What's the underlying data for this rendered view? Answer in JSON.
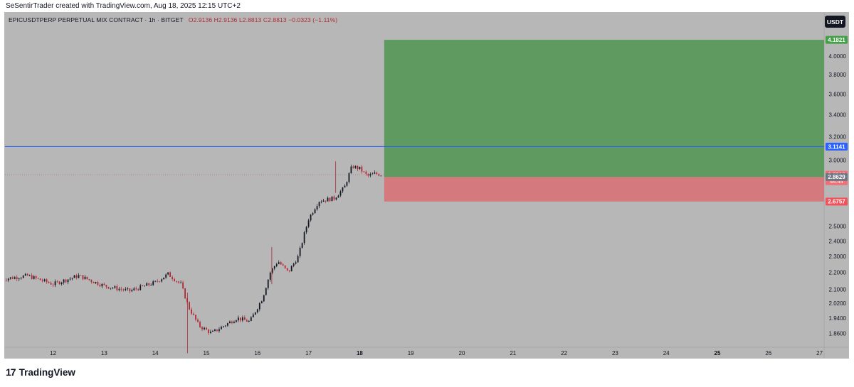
{
  "header": {
    "caption": "SeSentirTrader created with TradingView.com, Aug 18, 2025 12:15 UTC+2"
  },
  "legend": {
    "symbol": "EPICUSDTPERP PERPETUAL MIX CONTRACT · 1h · BITGET",
    "open": "O2.9136",
    "high": "H2.9136",
    "low": "L2.8813",
    "close": "C2.8813",
    "change": "−0.0323 (−1.11%)"
  },
  "currency": "USDT",
  "footer": {
    "logo_mark": "17",
    "logo_text": "TradingView"
  },
  "colors": {
    "background": "#b7b7b7",
    "up": "#131722",
    "down": "#b22833",
    "target_zone": "#5f9a61",
    "stop_zone": "#d47a7e",
    "level_line": "#2962ff",
    "target_label": "#43a047",
    "stop_label": "#f0525a",
    "price_label": "#f56c72",
    "current_label": "#6f7582"
  },
  "chart_data": {
    "type": "candlestick",
    "timeframe": "1h",
    "x_tick_labels": [
      "12",
      "13",
      "14",
      "15",
      "16",
      "17",
      "18",
      "19",
      "20",
      "21",
      "22",
      "23",
      "24",
      "25",
      "26",
      "27"
    ],
    "y_tick_labels": [
      "1.8600",
      "1.9400",
      "2.0200",
      "2.1000",
      "2.2000",
      "2.3000",
      "2.4000",
      "2.5000",
      "3.0000",
      "3.2000",
      "3.4000",
      "3.6000",
      "3.8000",
      "4.0000"
    ],
    "y_axis_scale": "log",
    "ylim": [
      1.8,
      4.35
    ],
    "keypoints": [
      {
        "day": 11.0,
        "price": 2.16
      },
      {
        "day": 11.5,
        "price": 2.18
      },
      {
        "day": 12.0,
        "price": 2.13
      },
      {
        "day": 12.5,
        "price": 2.18
      },
      {
        "day": 13.0,
        "price": 2.12
      },
      {
        "day": 13.5,
        "price": 2.09
      },
      {
        "day": 14.0,
        "price": 2.14
      },
      {
        "day": 14.25,
        "price": 2.19
      },
      {
        "day": 14.5,
        "price": 2.13
      },
      {
        "day": 14.65,
        "price": 2.0
      },
      {
        "day": 14.85,
        "price": 1.9
      },
      {
        "day": 15.1,
        "price": 1.86
      },
      {
        "day": 15.6,
        "price": 1.94
      },
      {
        "day": 15.85,
        "price": 1.92
      },
      {
        "day": 16.1,
        "price": 2.05
      },
      {
        "day": 16.25,
        "price": 2.2
      },
      {
        "day": 16.4,
        "price": 2.27
      },
      {
        "day": 16.6,
        "price": 2.2
      },
      {
        "day": 16.8,
        "price": 2.3
      },
      {
        "day": 17.0,
        "price": 2.55
      },
      {
        "day": 17.2,
        "price": 2.68
      },
      {
        "day": 17.5,
        "price": 2.7
      },
      {
        "day": 17.7,
        "price": 2.78
      },
      {
        "day": 17.85,
        "price": 2.95
      },
      {
        "day": 18.0,
        "price": 2.93
      },
      {
        "day": 18.15,
        "price": 2.87
      },
      {
        "day": 18.3,
        "price": 2.89
      },
      {
        "day": 18.45,
        "price": 2.88
      }
    ],
    "wicks": [
      {
        "day": 14.63,
        "low": 1.76,
        "high": 2.08
      },
      {
        "day": 17.53,
        "low": 2.74,
        "high": 2.99
      },
      {
        "day": 16.28,
        "low": 2.13,
        "high": 2.36
      }
    ],
    "horizontal_line": {
      "price": 3.1141,
      "label": "3.1141"
    },
    "position": {
      "start_day": 18.48,
      "end_day": 27.15,
      "entry": 2.8629,
      "target": 4.1821,
      "stop": 2.6757,
      "target_label": "4.1821",
      "stop_label": "2.6757"
    },
    "last_price": {
      "price": 2.8813,
      "label": "2.8813",
      "countdown": "44:44"
    },
    "current_price": {
      "price": 2.8629,
      "label": "2.8629"
    }
  }
}
